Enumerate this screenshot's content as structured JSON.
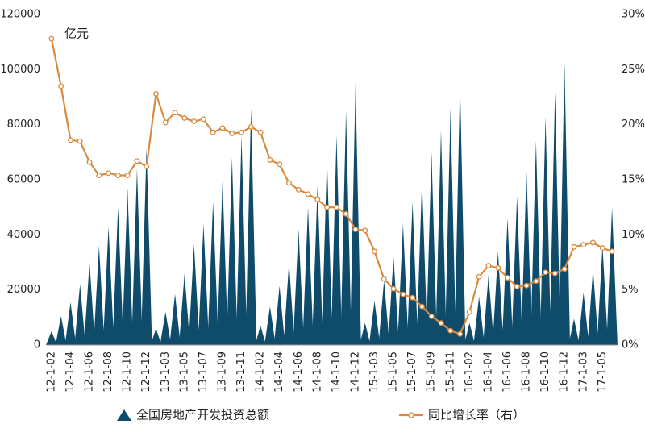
{
  "chart_data": {
    "type": "bar_line",
    "unit_label": "亿元",
    "categories": [
      "12-1-02",
      null,
      "12-1-04",
      null,
      "12-1-06",
      null,
      "12-1-08",
      null,
      "12-1-10",
      null,
      "12-1-12",
      null,
      "13-1-03",
      null,
      "13-1-05",
      null,
      "13-1-07",
      null,
      "13-1-09",
      null,
      "13-1-11",
      null,
      "14-1-02",
      null,
      "14-1-04",
      null,
      "14-1-06",
      null,
      "14-1-08",
      null,
      "14-1-10",
      null,
      "14-1-12",
      null,
      "15-1-03",
      null,
      "15-1-05",
      null,
      "15-1-07",
      null,
      "15-1-09",
      null,
      "15-1-11",
      null,
      "16-1-02",
      null,
      "16-1-04",
      null,
      "16-1-06",
      null,
      "16-1-08",
      null,
      "16-1-10",
      null,
      "16-1-12",
      null,
      "17-1-03",
      null,
      "17-1-05",
      null
    ],
    "series": [
      {
        "name": "全国房地产开发投资总额",
        "color": "#0f4c6c",
        "axis": "y",
        "values": [
          5000,
          10500,
          15500,
          22000,
          30000,
          36000,
          43000,
          50000,
          57000,
          64000,
          71800,
          6000,
          12000,
          18500,
          26000,
          36500,
          44000,
          52000,
          60000,
          68000,
          76000,
          86000,
          7000,
          14000,
          21500,
          30000,
          42000,
          50000,
          58000,
          68000,
          76000,
          85000,
          95000,
          8000,
          16000,
          23500,
          32000,
          44000,
          52000,
          60000,
          70000,
          78000,
          86000,
          96000,
          8000,
          17500,
          25500,
          34000,
          46000,
          54000,
          63000,
          74000,
          83000,
          92000,
          102500,
          9500,
          19000,
          27500,
          36000,
          50000
        ]
      },
      {
        "name": "同比增长率（右）",
        "color": "#d98a3d",
        "axis": "y2",
        "values": [
          27.8,
          23.5,
          18.6,
          18.5,
          16.6,
          15.4,
          15.6,
          15.4,
          15.4,
          16.7,
          16.2,
          22.8,
          20.2,
          21.1,
          20.6,
          20.3,
          20.5,
          19.3,
          19.7,
          19.2,
          19.3,
          19.8,
          19.3,
          16.8,
          16.4,
          14.7,
          14.1,
          13.7,
          13.2,
          12.5,
          12.5,
          11.9,
          10.5,
          10.4,
          8.5,
          6.0,
          5.1,
          4.6,
          4.3,
          3.5,
          2.6,
          2.0,
          1.3,
          1.0,
          3.0,
          6.2,
          7.2,
          7.0,
          6.1,
          5.3,
          5.4,
          5.8,
          6.6,
          6.5,
          6.9,
          8.9,
          9.1,
          9.3,
          8.8,
          8.5
        ]
      }
    ],
    "ylim": [
      0,
      120000
    ],
    "yticks": [
      0,
      20000,
      40000,
      60000,
      80000,
      100000,
      120000
    ],
    "y2lim": [
      0,
      30
    ],
    "y2ticks": [
      {
        "value": 0,
        "label": "0%"
      },
      {
        "value": 5,
        "label": "5%"
      },
      {
        "value": 10,
        "label": "10%"
      },
      {
        "value": 15,
        "label": "15%"
      },
      {
        "value": 20,
        "label": "20%"
      },
      {
        "value": 25,
        "label": "25%"
      },
      {
        "value": 30,
        "label": "30%"
      }
    ]
  }
}
